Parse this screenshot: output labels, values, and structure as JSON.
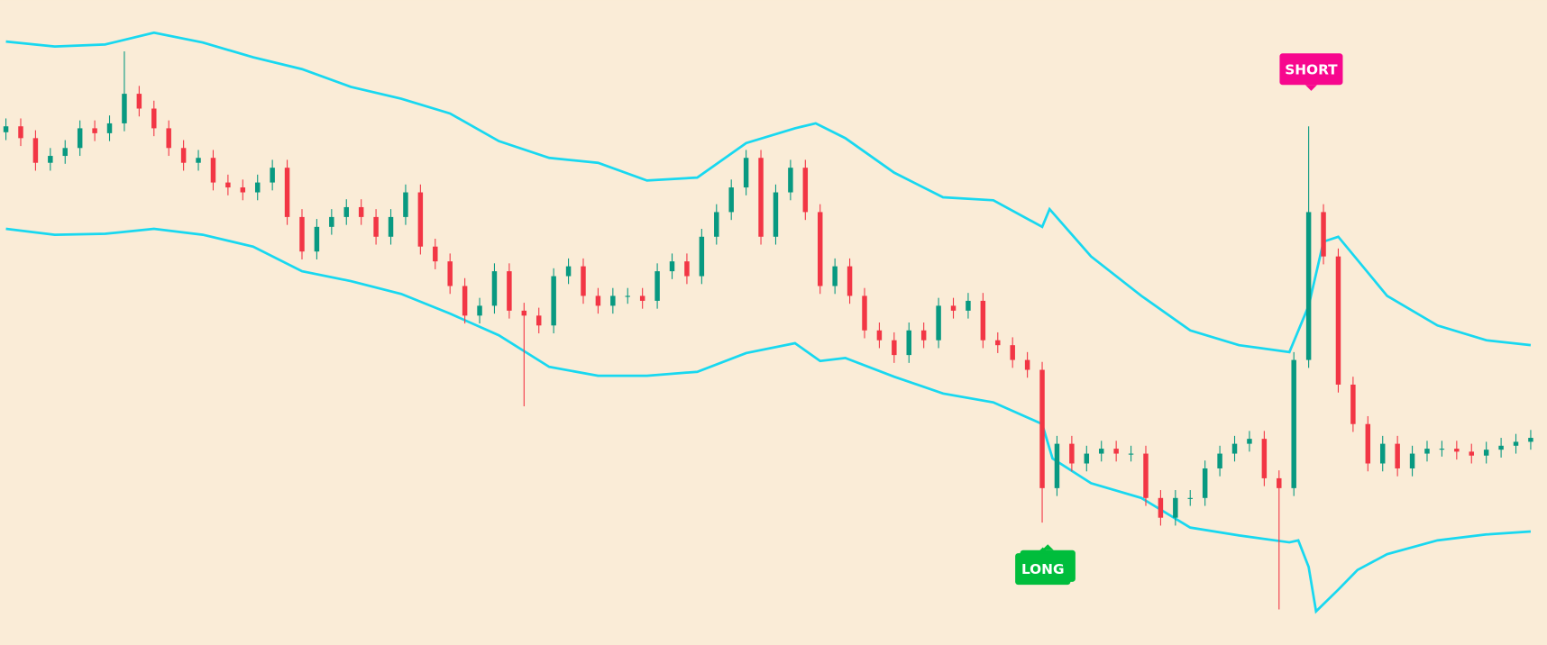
{
  "chart_data": {
    "type": "candlestick",
    "ylim": [
      0,
      654
    ],
    "xlim": [
      -0.4,
      104.1
    ],
    "up_color": "#089981",
    "down_color": "#f23645",
    "open": [
      520,
      526,
      514,
      489,
      496,
      504,
      524,
      519,
      529,
      559,
      544,
      524,
      504,
      489,
      494,
      469,
      464,
      459,
      469,
      484,
      434,
      399,
      424,
      434,
      444,
      434,
      414,
      434,
      459,
      404,
      389,
      364,
      334,
      344,
      379,
      339,
      334,
      324,
      374,
      384,
      354,
      344,
      354,
      354,
      349,
      379,
      389,
      374,
      414,
      439,
      464,
      494,
      414,
      459,
      484,
      439,
      364,
      384,
      354,
      319,
      309,
      294,
      319,
      309,
      344,
      339,
      349,
      309,
      304,
      289,
      279,
      159,
      204,
      184,
      194,
      199,
      194,
      194,
      149,
      129,
      149,
      149,
      179,
      194,
      204,
      209,
      169,
      159,
      289,
      439,
      394,
      264,
      224,
      184,
      204,
      179,
      194,
      199,
      199,
      196,
      192,
      198,
      202,
      206
    ],
    "high": [
      534,
      534,
      522,
      504,
      512,
      532,
      532,
      537,
      602,
      567,
      552,
      532,
      512,
      502,
      502,
      477,
      472,
      477,
      492,
      492,
      442,
      432,
      442,
      452,
      452,
      442,
      442,
      467,
      467,
      412,
      397,
      372,
      352,
      387,
      387,
      347,
      342,
      382,
      392,
      392,
      362,
      362,
      362,
      362,
      387,
      397,
      397,
      422,
      447,
      472,
      502,
      502,
      467,
      492,
      492,
      447,
      392,
      392,
      362,
      327,
      317,
      327,
      327,
      352,
      352,
      357,
      357,
      317,
      312,
      297,
      287,
      212,
      212,
      202,
      207,
      207,
      202,
      202,
      157,
      157,
      157,
      187,
      202,
      212,
      217,
      217,
      177,
      297,
      526,
      447,
      402,
      272,
      232,
      212,
      212,
      202,
      207,
      207,
      207,
      204,
      206,
      210,
      214,
      218
    ],
    "low": [
      512,
      506,
      481,
      481,
      488,
      496,
      511,
      511,
      521,
      536,
      516,
      496,
      481,
      481,
      461,
      456,
      451,
      451,
      461,
      426,
      391,
      391,
      416,
      426,
      426,
      406,
      406,
      426,
      396,
      381,
      356,
      326,
      326,
      336,
      331,
      242,
      316,
      316,
      366,
      346,
      336,
      336,
      346,
      341,
      341,
      371,
      366,
      366,
      406,
      431,
      456,
      406,
      406,
      451,
      431,
      356,
      356,
      346,
      311,
      301,
      286,
      286,
      301,
      301,
      331,
      331,
      301,
      296,
      281,
      271,
      124,
      151,
      176,
      176,
      186,
      186,
      186,
      141,
      121,
      121,
      141,
      141,
      171,
      186,
      196,
      161,
      36,
      151,
      281,
      386,
      256,
      216,
      176,
      176,
      171,
      171,
      186,
      191,
      188,
      184,
      184,
      190,
      194,
      198
    ],
    "close": [
      526,
      514,
      489,
      496,
      504,
      524,
      519,
      529,
      559,
      544,
      524,
      504,
      489,
      494,
      469,
      464,
      459,
      469,
      484,
      434,
      399,
      424,
      434,
      444,
      434,
      414,
      434,
      459,
      404,
      389,
      364,
      334,
      344,
      379,
      339,
      334,
      324,
      374,
      384,
      354,
      344,
      354,
      354,
      349,
      379,
      389,
      374,
      414,
      439,
      464,
      494,
      414,
      459,
      484,
      439,
      364,
      384,
      354,
      319,
      309,
      294,
      319,
      309,
      344,
      339,
      349,
      309,
      304,
      289,
      279,
      159,
      204,
      184,
      194,
      199,
      194,
      194,
      149,
      129,
      149,
      149,
      179,
      194,
      204,
      209,
      169,
      159,
      289,
      439,
      394,
      264,
      224,
      184,
      204,
      179,
      194,
      199,
      199,
      196,
      192,
      198,
      202,
      206,
      210
    ],
    "bands": [
      {
        "color": "#18d8f0",
        "x": [
          0,
          3.3,
          6.7,
          10,
          13.3,
          16.7,
          20,
          23.3,
          26.7,
          30,
          33.3,
          36.7,
          40,
          43.3,
          46.7,
          50,
          53.3,
          54.7,
          56.7,
          60,
          63.3,
          66.7,
          70,
          70.5,
          73.3,
          76.7,
          80,
          83.3,
          86.7,
          88,
          89,
          90,
          93.3,
          96.7,
          100,
          103
        ],
        "values": [
          612,
          607,
          609,
          621,
          611,
          596,
          584,
          566,
          554,
          539,
          511,
          494,
          489,
          471,
          474,
          509,
          524,
          529,
          514,
          479,
          454,
          451,
          424,
          442,
          394,
          354,
          319,
          304,
          297,
          344,
          409,
          414,
          354,
          324,
          309,
          304
        ]
      },
      {
        "color": "#18d8f0",
        "x": [
          0,
          3.3,
          6.7,
          10,
          13.3,
          16.7,
          20,
          23.3,
          26.7,
          30,
          33.3,
          36.7,
          40,
          43.3,
          46.7,
          50,
          53.3,
          55,
          56.7,
          60,
          63.3,
          66.7,
          70,
          70.7,
          73.3,
          76.7,
          80,
          83.3,
          86.7,
          87.3,
          88,
          88.5,
          90,
          91.3,
          93.3,
          96.7,
          100,
          103
        ],
        "values": [
          422,
          416,
          417,
          422,
          416,
          404,
          379,
          369,
          356,
          336,
          314,
          282,
          273,
          273,
          277,
          296,
          306,
          288,
          291,
          272,
          255,
          246,
          224,
          189,
          164,
          149,
          119,
          111,
          104,
          106,
          79,
          34,
          56,
          76,
          92,
          106,
          112,
          115
        ]
      }
    ],
    "annotations": [
      "SHORT",
      "LONG",
      "LONG"
    ]
  }
}
